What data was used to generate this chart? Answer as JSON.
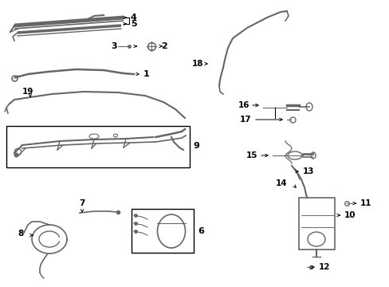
{
  "bg_color": "#ffffff",
  "part_color": "#666666",
  "text_color": "#000000",
  "figsize": [
    4.89,
    3.6
  ],
  "dpi": 100
}
